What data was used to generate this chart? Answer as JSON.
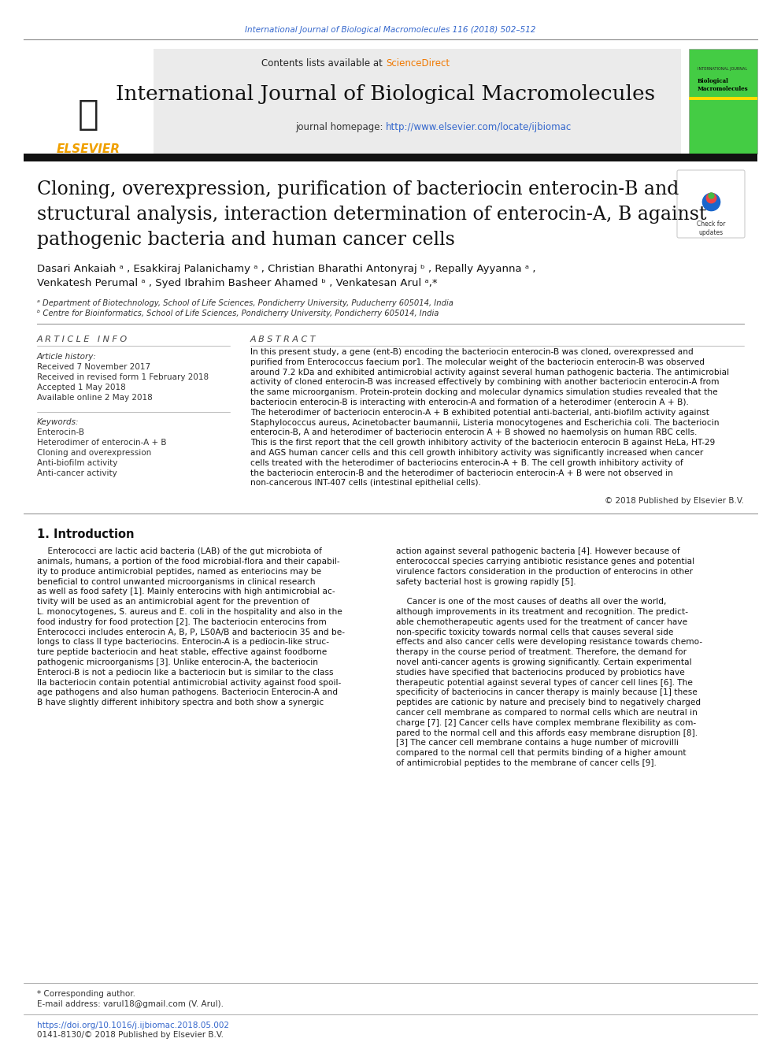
{
  "page_bg": "#ffffff",
  "top_citation": "International Journal of Biological Macromolecules 116 (2018) 502–512",
  "top_citation_color": "#3366cc",
  "header_bg": "#ebebeb",
  "contents_text": "Contents lists available at ",
  "sciencedirect_text": "ScienceDirect",
  "sciencedirect_color": "#f07800",
  "journal_title": "International Journal of Biological Macromolecules",
  "journal_homepage_label": "journal homepage: ",
  "journal_homepage_url": "http://www.elsevier.com/locate/ijbiomac",
  "journal_homepage_color": "#3366cc",
  "thick_bar_color": "#111111",
  "article_title_line1": "Cloning, overexpression, purification of bacteriocin enterocin-B and",
  "article_title_line2": "structural analysis, interaction determination of enterocin-A, B against",
  "article_title_line3": "pathogenic bacteria and human cancer cells",
  "authors_line1": "Dasari Ankaiah ᵃ , Esakkiraj Palanichamy ᵃ , Christian Bharathi Antonyraj ᵇ , Repally Ayyanna ᵃ ,",
  "authors_line2": "Venkatesh Perumal ᵃ , Syed Ibrahim Basheer Ahamed ᵇ , Venkatesan Arul ᵃ,*",
  "affil_a": "ᵃ Department of Biotechnology, School of Life Sciences, Pondicherry University, Puducherry 605014, India",
  "affil_b": "ᵇ Centre for Bioinformatics, School of Life Sciences, Pondicherry University, Pondicherry 605014, India",
  "article_info_header": "A R T I C L E   I N F O",
  "abstract_header": "A B S T R A C T",
  "article_history_label": "Article history:",
  "received_1": "Received 7 November 2017",
  "received_2": "Received in revised form 1 February 2018",
  "accepted": "Accepted 1 May 2018",
  "available": "Available online 2 May 2018",
  "keywords_label": "Keywords:",
  "kw1": "Enterocin-B",
  "kw2": "Heterodimer of enterocin-A + B",
  "kw3": "Cloning and overexpression",
  "kw4": "Anti-biofilm activity",
  "kw5": "Anti-cancer activity",
  "copyright": "© 2018 Published by Elsevier B.V.",
  "intro_header": "1. Introduction",
  "footer_corresponding": "* Corresponding author.",
  "footer_email": "E-mail address: varul18@gmail.com (V. Arul).",
  "footer_doi": "https://doi.org/10.1016/j.ijbiomac.2018.05.002",
  "footer_issn": "0141-8130/© 2018 Published by Elsevier B.V.",
  "elsevier_color": "#f0a000",
  "cover_green": "#44cc44",
  "abstract_lines": [
    "In this present study, a gene (ent-B) encoding the bacteriocin enterocin-B was cloned, overexpressed and",
    "purified from Enterococcus faecium por1. The molecular weight of the bacteriocin enterocin-B was observed",
    "around 7.2 kDa and exhibited antimicrobial activity against several human pathogenic bacteria. The antimicrobial",
    "activity of cloned enterocin-B was increased effectively by combining with another bacteriocin enterocin-A from",
    "the same microorganism. Protein-protein docking and molecular dynamics simulation studies revealed that the",
    "bacteriocin enterocin-B is interacting with enterocin-A and formation of a heterodimer (enterocin A + B).",
    "The heterodimer of bacteriocin enterocin-A + B exhibited potential anti-bacterial, anti-biofilm activity against",
    "Staphylococcus aureus, Acinetobacter baumannii, Listeria monocytogenes and Escherichia coli. The bacteriocin",
    "enterocin-B, A and heterodimer of bacteriocin enterocin A + B showed no haemolysis on human RBC cells.",
    "This is the first report that the cell growth inhibitory activity of the bacteriocin enterocin B against HeLa, HT-29",
    "and AGS human cancer cells and this cell growth inhibitory activity was significantly increased when cancer",
    "cells treated with the heterodimer of bacteriocins enterocin-A + B. The cell growth inhibitory activity of",
    "the bacteriocin enterocin-B and the heterodimer of bacteriocin enterocin-A + B were not observed in",
    "non-cancerous INT-407 cells (intestinal epithelial cells)."
  ],
  "intro_col1_lines": [
    "    Enterococci are lactic acid bacteria (LAB) of the gut microbiota of",
    "animals, humans, a portion of the food microbial-flora and their capabil-",
    "ity to produce antimicrobial peptides, named as enteriocins may be",
    "beneficial to control unwanted microorganisms in clinical research",
    "as well as food safety [1]. Mainly enterocins with high antimicrobial ac-",
    "tivity will be used as an antimicrobial agent for the prevention of",
    "L. monocytogenes, S. aureus and E. coli in the hospitality and also in the",
    "food industry for food protection [2]. The bacteriocin enterocins from",
    "Enterococci includes enterocin A, B, P, L50A/B and bacteriocin 35 and be-",
    "longs to class II type bacteriocins. Enterocin-A is a pediocin-like struc-",
    "ture peptide bacteriocin and heat stable, effective against foodborne",
    "pathogenic microorganisms [3]. Unlike enterocin-A, the bacteriocin",
    "Enteroci-B is not a pediocin like a bacteriocin but is similar to the class",
    "IIa bacteriocin contain potential antimicrobial activity against food spoil-",
    "age pathogens and also human pathogens. Bacteriocin Enterocin-A and",
    "B have slightly different inhibitory spectra and both show a synergic"
  ],
  "intro_col2_lines": [
    "action against several pathogenic bacteria [4]. However because of",
    "enterococcal species carrying antibiotic resistance genes and potential",
    "virulence factors consideration in the production of enterocins in other",
    "safety bacterial host is growing rapidly [5].",
    "",
    "    Cancer is one of the most causes of deaths all over the world,",
    "although improvements in its treatment and recognition. The predict-",
    "able chemotherapeutic agents used for the treatment of cancer have",
    "non-specific toxicity towards normal cells that causes several side",
    "effects and also cancer cells were developing resistance towards chemo-",
    "therapy in the course period of treatment. Therefore, the demand for",
    "novel anti-cancer agents is growing significantly. Certain experimental",
    "studies have specified that bacteriocins produced by probiotics have",
    "therapeutic potential against several types of cancer cell lines [6]. The",
    "specificity of bacteriocins in cancer therapy is mainly because [1] these",
    "peptides are cationic by nature and precisely bind to negatively charged",
    "cancer cell membrane as compared to normal cells which are neutral in",
    "charge [7]. [2] Cancer cells have complex membrane flexibility as com-",
    "pared to the normal cell and this affords easy membrane disruption [8].",
    "[3] The cancer cell membrane contains a huge number of microvilli",
    "compared to the normal cell that permits binding of a higher amount",
    "of antimicrobial peptides to the membrane of cancer cells [9]."
  ]
}
